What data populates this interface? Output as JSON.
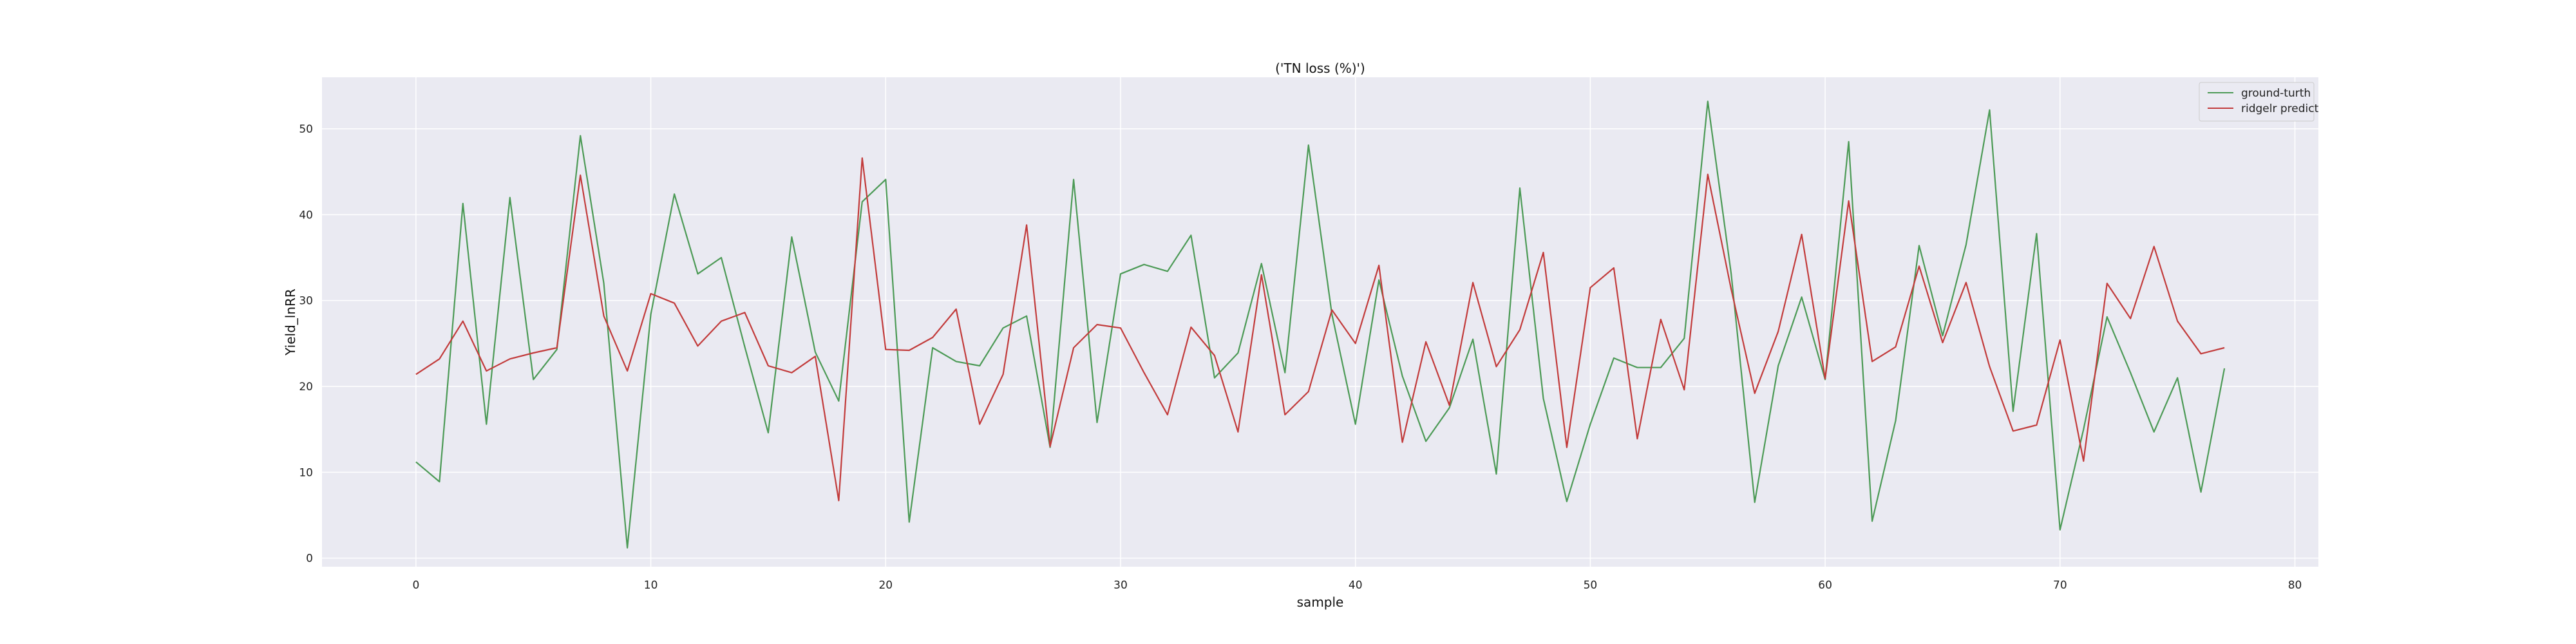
{
  "chart_data": {
    "type": "line",
    "title": "('TN loss (%)')",
    "xlabel": "sample",
    "ylabel": "Yield_lnRR",
    "xlim": [
      -4,
      81
    ],
    "ylim": [
      -1,
      56
    ],
    "xticks": [
      0,
      10,
      20,
      30,
      40,
      50,
      60,
      70,
      80
    ],
    "yticks": [
      0,
      10,
      20,
      30,
      40,
      50
    ],
    "grid": true,
    "legend_position": "top-right",
    "x": [
      0,
      1,
      2,
      3,
      4,
      5,
      6,
      7,
      8,
      9,
      10,
      11,
      12,
      13,
      14,
      15,
      16,
      17,
      18,
      19,
      20,
      21,
      22,
      23,
      24,
      25,
      26,
      27,
      28,
      29,
      30,
      31,
      32,
      33,
      34,
      35,
      36,
      37,
      38,
      39,
      40,
      41,
      42,
      43,
      44,
      45,
      46,
      47,
      48,
      49,
      50,
      51,
      52,
      53,
      54,
      55,
      56,
      57,
      58,
      59,
      60,
      61,
      62,
      63,
      64,
      65,
      66,
      67,
      68,
      69,
      70,
      71,
      72,
      73,
      74,
      75,
      76,
      77
    ],
    "series": [
      {
        "name": "ground-turth",
        "color": "#4c9a56",
        "values": [
          11.2,
          8.9,
          41.3,
          15.6,
          42.0,
          20.8,
          24.3,
          49.2,
          32.0,
          1.2,
          28.4,
          42.4,
          33.1,
          35.0,
          24.6,
          14.6,
          37.4,
          24.0,
          18.3,
          41.5,
          44.1,
          4.2,
          24.5,
          22.9,
          22.4,
          26.8,
          28.2,
          12.9,
          44.1,
          15.8,
          33.1,
          34.2,
          33.4,
          37.6,
          21.0,
          23.9,
          34.3,
          21.6,
          48.1,
          28.4,
          15.6,
          32.4,
          21.2,
          13.6,
          17.5,
          25.5,
          9.8,
          43.1,
          18.6,
          6.6,
          15.6,
          23.3,
          22.2,
          22.2,
          25.6,
          53.2,
          33.1,
          6.5,
          22.4,
          30.4,
          20.8,
          48.5,
          4.3,
          16.0,
          36.4,
          25.9,
          36.5,
          52.2,
          17.1,
          37.8,
          3.3,
          15.0,
          28.1,
          21.6,
          14.7,
          21.0,
          7.7,
          22.1
        ]
      },
      {
        "name": "ridgelr predict",
        "color": "#c23b3b",
        "values": [
          21.4,
          23.2,
          27.6,
          21.8,
          23.2,
          23.9,
          24.5,
          44.6,
          28.2,
          21.8,
          30.8,
          29.7,
          24.7,
          27.6,
          28.6,
          22.4,
          21.6,
          23.5,
          6.7,
          46.6,
          24.3,
          24.2,
          25.7,
          29.0,
          15.6,
          21.4,
          38.8,
          13.0,
          24.5,
          27.2,
          26.8,
          21.6,
          16.7,
          26.9,
          23.6,
          14.7,
          33.0,
          16.7,
          19.4,
          28.9,
          25.0,
          34.1,
          13.5,
          25.2,
          17.8,
          32.1,
          22.3,
          26.6,
          35.6,
          12.9,
          31.5,
          33.8,
          13.9,
          27.8,
          19.6,
          44.7,
          31.3,
          19.2,
          26.4,
          37.7,
          20.9,
          41.6,
          22.9,
          24.6,
          34.0,
          25.1,
          32.1,
          22.3,
          14.8,
          15.5,
          25.4,
          11.3,
          32.0,
          27.9,
          36.3,
          27.6,
          23.8,
          24.5
        ]
      }
    ]
  }
}
